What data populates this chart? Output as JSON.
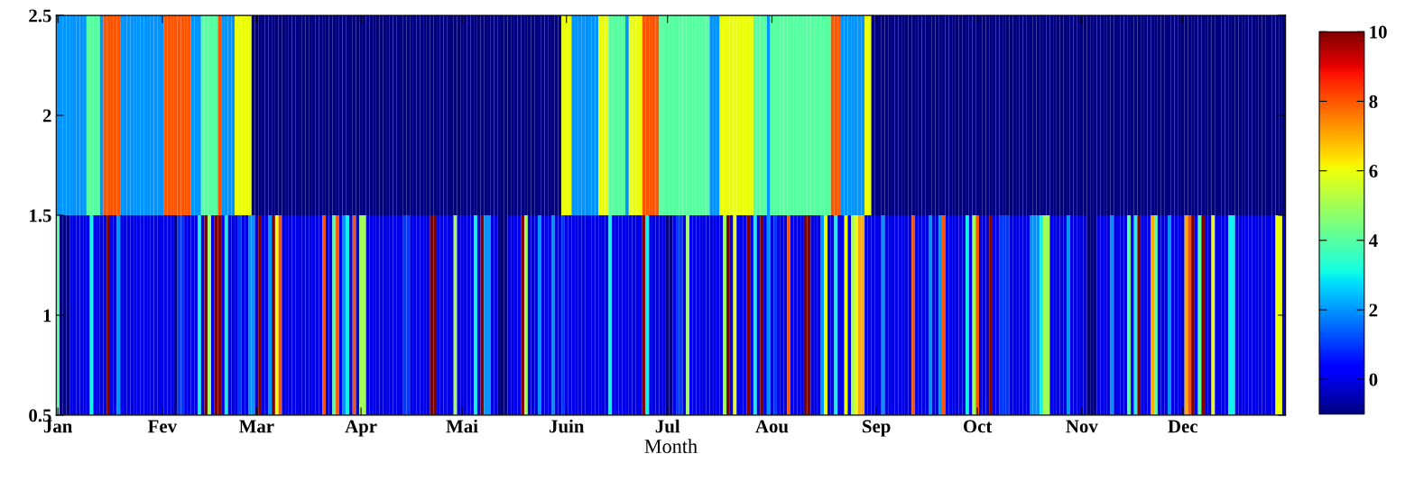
{
  "chart_data": {
    "type": "heatmap",
    "xlabel": "Month",
    "categories": [
      "Jan",
      null,
      null,
      null,
      null,
      null,
      null,
      null,
      null,
      null,
      null,
      null,
      null,
      null,
      null,
      null,
      null,
      null,
      null,
      null,
      null,
      null,
      null,
      null,
      null,
      null,
      null,
      null,
      null,
      null,
      null,
      "Fev",
      null,
      null,
      null,
      null,
      null,
      null,
      null,
      null,
      null,
      null,
      null,
      null,
      null,
      null,
      null,
      null,
      null,
      null,
      null,
      null,
      null,
      null,
      null,
      null,
      null,
      null,
      null,
      "Mar",
      null,
      null,
      null,
      null,
      null,
      null,
      null,
      null,
      null,
      null,
      null,
      null,
      null,
      null,
      null,
      null,
      null,
      null,
      null,
      null,
      null,
      null,
      null,
      null,
      null,
      null,
      null,
      null,
      null,
      null,
      "Apr",
      null,
      null,
      null,
      null,
      null,
      null,
      null,
      null,
      null,
      null,
      null,
      null,
      null,
      null,
      null,
      null,
      null,
      null,
      null,
      null,
      null,
      null,
      null,
      null,
      null,
      null,
      null,
      null,
      null,
      "Mai",
      null,
      null,
      null,
      null,
      null,
      null,
      null,
      null,
      null,
      null,
      null,
      null,
      null,
      null,
      null,
      null,
      null,
      null,
      null,
      null,
      null,
      null,
      null,
      null,
      null,
      null,
      null,
      null,
      null,
      null,
      "Juin",
      null,
      null,
      null,
      null,
      null,
      null,
      null,
      null,
      null,
      null,
      null,
      null,
      null,
      null,
      null,
      null,
      null,
      null,
      null,
      null,
      null,
      null,
      null,
      null,
      null,
      null,
      null,
      null,
      null,
      "Jul",
      null,
      null,
      null,
      null,
      null,
      null,
      null,
      null,
      null,
      null,
      null,
      null,
      null,
      null,
      null,
      null,
      null,
      null,
      null,
      null,
      null,
      null,
      null,
      null,
      null,
      null,
      null,
      null,
      null,
      null,
      "Aou",
      null,
      null,
      null,
      null,
      null,
      null,
      null,
      null,
      null,
      null,
      null,
      null,
      null,
      null,
      null,
      null,
      null,
      null,
      null,
      null,
      null,
      null,
      null,
      null,
      null,
      null,
      null,
      null,
      null,
      null,
      "Sep",
      null,
      null,
      null,
      null,
      null,
      null,
      null,
      null,
      null,
      null,
      null,
      null,
      null,
      null,
      null,
      null,
      null,
      null,
      null,
      null,
      null,
      null,
      null,
      null,
      null,
      null,
      null,
      null,
      null,
      "Oct",
      null,
      null,
      null,
      null,
      null,
      null,
      null,
      null,
      null,
      null,
      null,
      null,
      null,
      null,
      null,
      null,
      null,
      null,
      null,
      null,
      null,
      null,
      null,
      null,
      null,
      null,
      null,
      null,
      null,
      null,
      "Nov",
      null,
      null,
      null,
      null,
      null,
      null,
      null,
      null,
      null,
      null,
      null,
      null,
      null,
      null,
      null,
      null,
      null,
      null,
      null,
      null,
      null,
      null,
      null,
      null,
      null,
      null,
      null,
      null,
      null,
      "Dec",
      null,
      null,
      null,
      null,
      null,
      null,
      null,
      null,
      null,
      null,
      null,
      null,
      null,
      null,
      null,
      null,
      null,
      null,
      null,
      null,
      null,
      null,
      null,
      null,
      null,
      null,
      null,
      null,
      null,
      null
    ],
    "ylim": [
      0.5,
      2.5
    ],
    "yticks": [
      0.5,
      1,
      1.5,
      2,
      2.5
    ],
    "clim": [
      -1,
      10
    ],
    "cticks": [
      0,
      2,
      4,
      6,
      8,
      10
    ],
    "cells": [
      [
        2,
        2,
        2,
        2,
        2,
        2,
        2,
        2,
        2,
        4,
        4,
        4,
        4,
        2,
        8,
        8,
        8,
        8,
        8,
        2,
        2,
        2,
        2,
        2,
        2,
        2,
        2,
        2,
        2,
        2,
        2,
        2,
        8,
        8,
        8,
        8,
        8,
        8,
        8,
        8,
        2,
        2,
        2,
        4,
        4,
        4,
        4,
        4,
        8,
        2,
        2,
        2,
        2,
        6,
        6,
        6,
        6,
        6,
        -1,
        -1,
        -1,
        -1,
        -1,
        -1,
        -1,
        -1,
        -1,
        -1,
        -1,
        -1,
        -1,
        -1,
        -1,
        -1,
        -1,
        -1,
        -1,
        -1,
        -1,
        -1,
        -1,
        -1,
        -1,
        -1,
        -1,
        -1,
        -1,
        -1,
        -1,
        -1,
        -1,
        -1,
        -1,
        -1,
        -1,
        -1,
        -1,
        -1,
        -1,
        -1,
        -1,
        -1,
        -1,
        -1,
        -1,
        -1,
        -1,
        -1,
        -1,
        -1,
        -1,
        -1,
        -1,
        -1,
        -1,
        -1,
        -1,
        -1,
        -1,
        -1,
        -1,
        -1,
        -1,
        -1,
        -1,
        -1,
        -1,
        -1,
        -1,
        -1,
        -1,
        -1,
        -1,
        -1,
        -1,
        -1,
        -1,
        -1,
        -1,
        -1,
        -1,
        -1,
        -1,
        -1,
        -1,
        -1,
        -1,
        -1,
        -1,
        -1,
        6,
        6,
        6,
        2,
        2,
        2,
        2,
        2,
        2,
        2,
        2,
        6,
        6,
        6,
        4,
        4,
        4,
        4,
        4,
        2,
        6,
        6,
        6,
        6,
        8,
        8,
        8,
        8,
        8,
        4,
        4,
        4,
        4,
        4,
        4,
        4,
        4,
        4,
        4,
        4,
        4,
        4,
        4,
        4,
        2,
        2,
        2,
        6,
        6,
        6,
        6,
        6,
        6,
        6,
        6,
        6,
        6,
        4,
        4,
        4,
        4,
        2,
        4,
        4,
        4,
        4,
        4,
        4,
        4,
        4,
        4,
        4,
        4,
        4,
        4,
        4,
        4,
        4,
        4,
        4,
        8,
        8,
        8,
        2,
        2,
        2,
        2,
        2,
        2,
        2,
        6,
        6,
        -1,
        -1,
        -1,
        -1,
        -1,
        -1,
        -1,
        -1,
        -1,
        -1,
        -1,
        -1,
        -1,
        -1,
        -1,
        -1,
        -1,
        -1,
        -1,
        -1,
        -1,
        -1,
        -1,
        -1,
        -1,
        -1,
        -1,
        -1,
        -1,
        -1,
        -1,
        -1,
        -1,
        -1,
        -1,
        -1,
        -1,
        -1,
        -1,
        -1,
        -1,
        -1,
        -1,
        -1,
        -1,
        -1,
        -1,
        -1,
        -1,
        -1,
        -1,
        -1,
        -1,
        -1,
        -1,
        -1,
        -1,
        -1,
        -1,
        -1,
        -1,
        -1,
        -1,
        -1,
        -1,
        -1,
        -1,
        -1,
        -1,
        -1,
        -1,
        -1,
        -1,
        -1,
        -1,
        -1,
        -1,
        -1,
        -1,
        -1,
        -1,
        -1,
        -1,
        -1,
        -1,
        -1,
        -1,
        -1,
        -1,
        -1,
        -1,
        -1,
        -1,
        -1,
        -1,
        -1,
        -1,
        -1,
        -1,
        -1,
        -1,
        -1,
        -1,
        -1,
        -1,
        -1,
        -1,
        -1,
        -1,
        -1,
        -1,
        -1,
        -1,
        -1,
        -1,
        -1,
        -1,
        -1,
        -1,
        -1,
        -1,
        -1,
        -1
      ],
      [
        4,
        -1,
        -1,
        -1,
        0,
        0,
        0,
        0,
        0,
        0,
        3,
        0,
        0,
        0,
        0,
        10,
        0,
        0,
        2,
        0,
        0,
        0,
        0,
        0,
        0,
        0,
        0,
        0,
        0,
        0,
        0,
        0,
        0,
        0,
        0,
        -1,
        1,
        1,
        0,
        0,
        0,
        0,
        3,
        0,
        10,
        5,
        0,
        10,
        10,
        0,
        3,
        0,
        0,
        0,
        1,
        0,
        0,
        2,
        2,
        0,
        10,
        0,
        0,
        2,
        10,
        6,
        8,
        0,
        0,
        0,
        0,
        0,
        0,
        0,
        0,
        0,
        0,
        0,
        0,
        8,
        0,
        0,
        4,
        8,
        0,
        2,
        3,
        0,
        8,
        0,
        5,
        5,
        0,
        0,
        0,
        0,
        0,
        0,
        0,
        0,
        0,
        0,
        0,
        1,
        1,
        0,
        0,
        0,
        0,
        0,
        0,
        10,
        10,
        0,
        0,
        0,
        0,
        0,
        5,
        0,
        0,
        0,
        0,
        0,
        3,
        0,
        10,
        2,
        2,
        0,
        0,
        -1,
        -1,
        -1,
        0,
        0,
        0,
        0,
        10,
        5,
        0,
        0,
        0,
        2,
        0,
        0,
        0,
        2,
        0,
        0,
        1,
        0,
        0,
        0,
        0,
        0,
        0,
        0,
        0,
        0,
        0,
        0,
        0,
        0,
        3,
        0,
        0,
        0,
        0,
        0,
        0,
        0,
        0,
        0,
        10,
        3,
        0,
        0,
        0,
        0,
        0,
        -1,
        -1,
        0,
        1,
        1,
        0,
        5,
        0,
        0,
        0,
        0,
        0,
        0,
        0,
        0,
        0,
        0,
        5,
        10,
        0,
        6,
        0,
        0,
        0,
        10,
        0,
        3,
        0,
        10,
        0,
        2,
        0,
        1,
        0,
        0,
        0,
        8,
        0,
        0,
        0,
        0,
        10,
        10,
        0,
        0,
        0,
        2,
        6,
        0,
        0,
        3,
        0,
        0,
        6,
        0,
        5,
        6,
        7,
        7,
        0,
        0,
        0,
        0,
        0,
        2,
        0,
        0,
        0,
        0,
        0,
        0,
        0,
        0,
        8,
        0,
        0,
        0,
        0,
        2,
        0,
        0,
        2,
        8,
        0,
        0,
        0,
        0,
        0,
        0,
        3,
        0,
        5,
        8,
        0,
        0,
        0,
        10,
        0,
        0,
        1,
        1,
        1,
        0,
        0,
        0,
        0,
        0,
        0,
        2,
        2,
        2,
        3,
        5,
        5,
        0,
        0,
        0,
        0,
        0,
        2,
        0,
        0,
        0,
        0,
        0,
        -1,
        -1,
        -1,
        0,
        0,
        0,
        0,
        2,
        0,
        0,
        0,
        0,
        4,
        0,
        3,
        10,
        0,
        0,
        0,
        7,
        4,
        0,
        0,
        0,
        2,
        0,
        0,
        0,
        0,
        7,
        8,
        10,
        0,
        4,
        10,
        0,
        0,
        6,
        0,
        0,
        0,
        0,
        3,
        3,
        0,
        0,
        0,
        0,
        0,
        0,
        0,
        0,
        0,
        0,
        0,
        0,
        6,
        6,
        0
      ]
    ]
  }
}
